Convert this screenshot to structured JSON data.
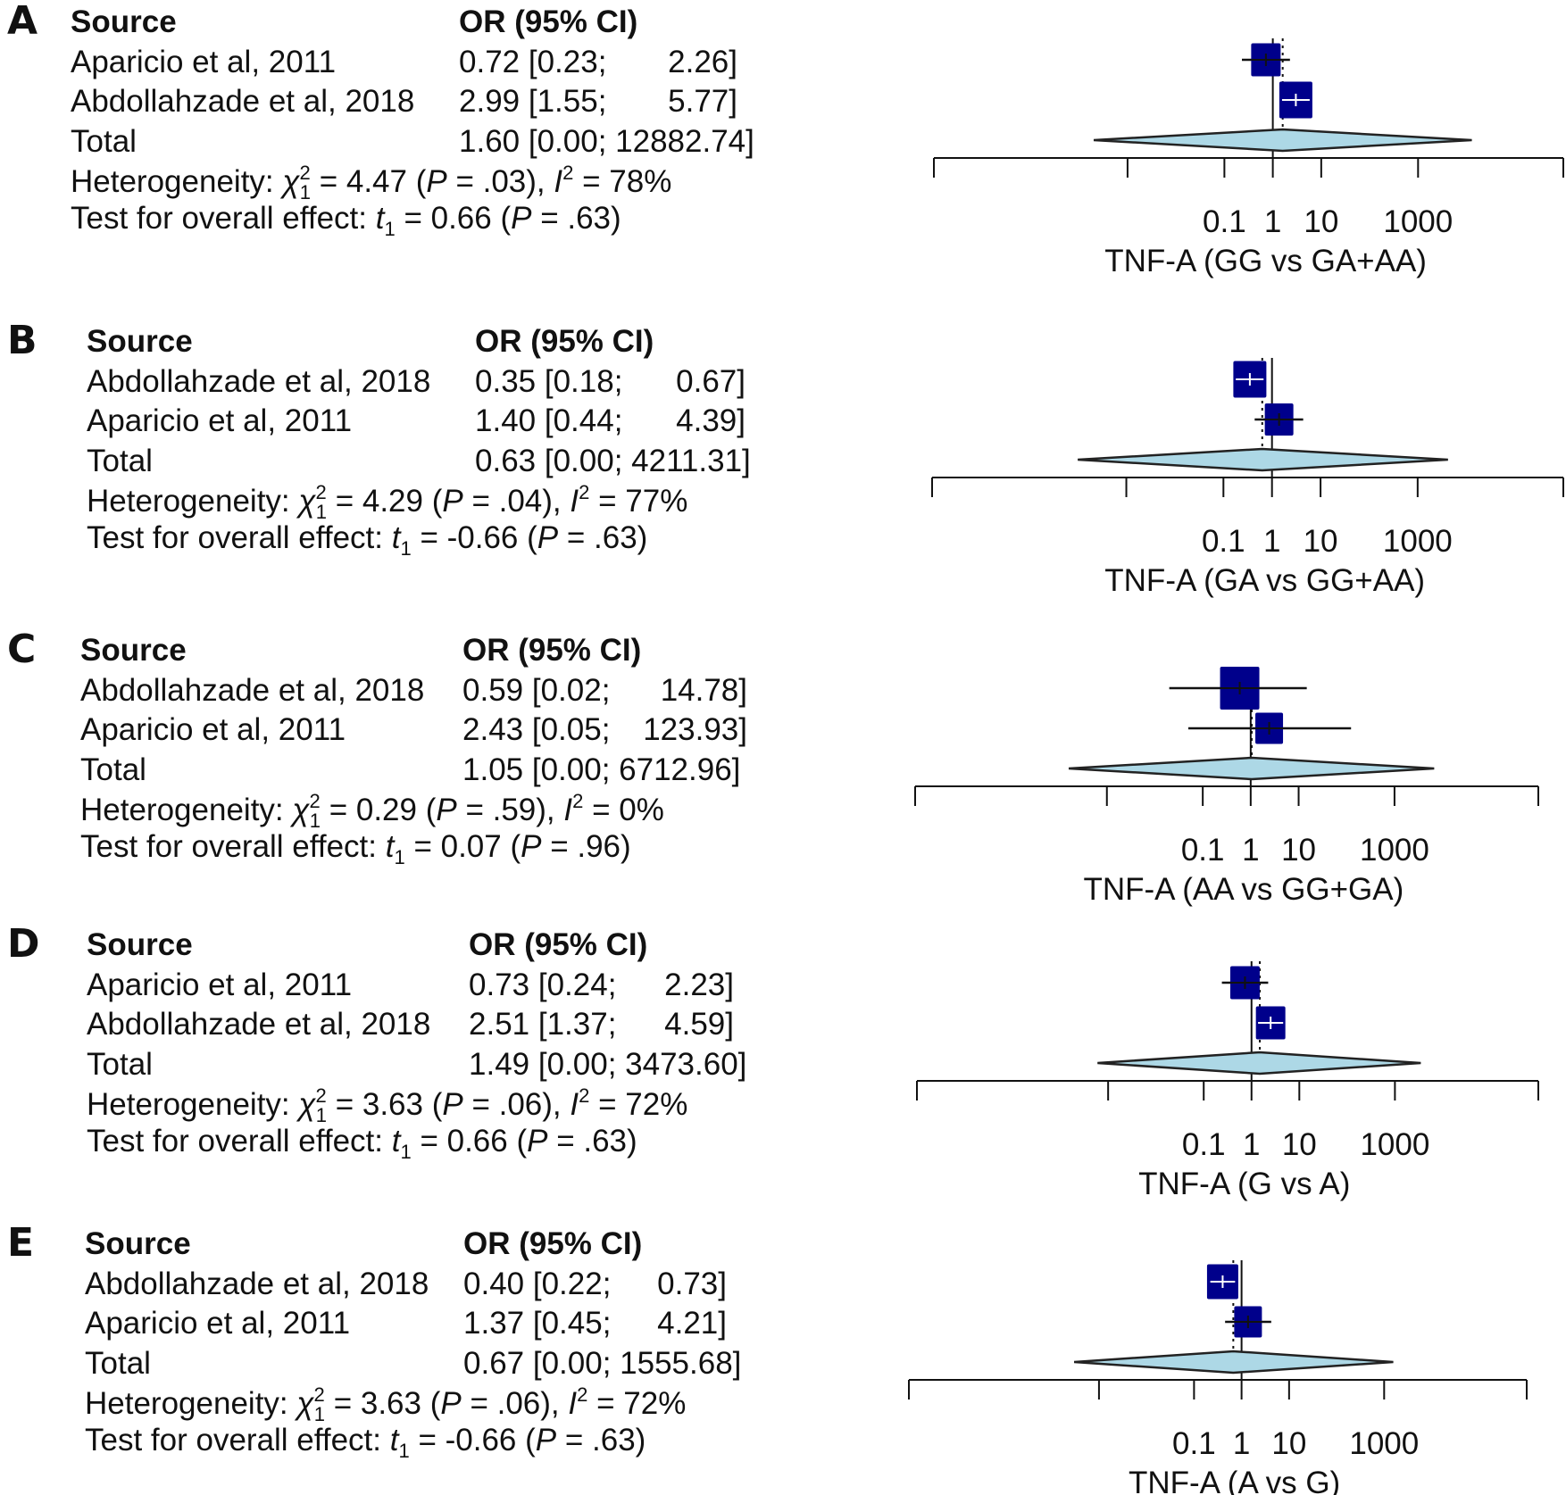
{
  "labels": {
    "source": "Source",
    "or_ci": "OR (95% CI)",
    "total": "Total",
    "heterogeneity": "Heterogeneity:",
    "overall": "Test for overall effect:"
  },
  "colors": {
    "square": "#00008B",
    "diamond_fill": "#ADD8E6",
    "line": "#111111"
  },
  "chart_data": [
    {
      "type": "forest",
      "panel": "A",
      "xlabel": "TNF-A (GG vs GA+AA)",
      "xscale": "log",
      "xticks": [
        1e-07,
        0.001,
        0.1,
        1,
        10,
        1000,
        1000000
      ],
      "xtick_labels": [
        "",
        "",
        "0.1",
        "1",
        "10",
        "1000",
        ""
      ],
      "studies": [
        {
          "name": "Aparicio et al, 2011",
          "or": 0.72,
          "lower": 0.23,
          "upper": 2.26,
          "or_text": "0.72",
          "lower_text": "0.23",
          "upper_text": "2.26"
        },
        {
          "name": "Abdollahzade et al, 2018",
          "or": 2.99,
          "lower": 1.55,
          "upper": 5.77,
          "or_text": "2.99",
          "lower_text": "1.55",
          "upper_text": "5.77"
        }
      ],
      "total": {
        "or": 1.6,
        "lower": 0.0002,
        "upper": 12882.74,
        "text": "1.60 [0.00; 12882.74]"
      },
      "heterogeneity": {
        "chi2": "4.47",
        "p": ".03",
        "i2": "78%"
      },
      "overall": {
        "t": "0.66",
        "p": ".63"
      }
    },
    {
      "type": "forest",
      "panel": "B",
      "xlabel": "TNF-A (GA vs GG+AA)",
      "xscale": "log",
      "xticks": [
        1e-07,
        0.001,
        0.1,
        1,
        10,
        1000,
        1000000
      ],
      "xtick_labels": [
        "",
        "",
        "0.1",
        "1",
        "10",
        "1000",
        ""
      ],
      "studies": [
        {
          "name": "Abdollahzade et al, 2018",
          "or": 0.35,
          "lower": 0.18,
          "upper": 0.67,
          "or_text": "0.35",
          "lower_text": "0.18",
          "upper_text": "0.67"
        },
        {
          "name": "Aparicio et al, 2011",
          "or": 1.4,
          "lower": 0.44,
          "upper": 4.39,
          "or_text": "1.40",
          "lower_text": "0.44",
          "upper_text": "4.39"
        }
      ],
      "total": {
        "or": 0.63,
        "lower": 0.0001,
        "upper": 4211.31,
        "text": "0.63 [0.00; 4211.31]"
      },
      "heterogeneity": {
        "chi2": "4.29",
        "p": ".04",
        "i2": "77%"
      },
      "overall": {
        "t": "-0.66",
        "p": ".63"
      }
    },
    {
      "type": "forest",
      "panel": "C",
      "xlabel": "TNF-A (AA vs GG+GA)",
      "xscale": "log",
      "xticks": [
        1e-07,
        0.001,
        0.1,
        1,
        10,
        1000,
        1000000
      ],
      "xtick_labels": [
        "",
        "",
        "0.1",
        "1",
        "10",
        "1000",
        ""
      ],
      "studies": [
        {
          "name": "Abdollahzade et al, 2018",
          "or": 0.59,
          "lower": 0.02,
          "upper": 14.78,
          "or_text": "0.59",
          "lower_text": "0.02",
          "upper_text": "14.78"
        },
        {
          "name": "Aparicio et al, 2011",
          "or": 2.43,
          "lower": 0.05,
          "upper": 123.93,
          "or_text": "2.43",
          "lower_text": "0.05",
          "upper_text": "123.93"
        }
      ],
      "total": {
        "or": 1.05,
        "lower": 0.00016,
        "upper": 6712.96,
        "text": "1.05 [0.00; 6712.96]"
      },
      "heterogeneity": {
        "chi2": "0.29",
        "p": ".59",
        "i2": "0%"
      },
      "overall": {
        "t": "0.07",
        "p": ".96"
      }
    },
    {
      "type": "forest",
      "panel": "D",
      "xlabel": "TNF-A (G vs A)",
      "xscale": "log",
      "xticks": [
        1e-07,
        0.001,
        0.1,
        1,
        10,
        1000,
        1000000
      ],
      "xtick_labels": [
        "",
        "",
        "0.1",
        "1",
        "10",
        "1000",
        ""
      ],
      "studies": [
        {
          "name": "Aparicio et al, 2011",
          "or": 0.73,
          "lower": 0.24,
          "upper": 2.23,
          "or_text": "0.73",
          "lower_text": "0.24",
          "upper_text": "2.23"
        },
        {
          "name": "Abdollahzade et al, 2018",
          "or": 2.51,
          "lower": 1.37,
          "upper": 4.59,
          "or_text": "2.51",
          "lower_text": "1.37",
          "upper_text": "4.59"
        }
      ],
      "total": {
        "or": 1.49,
        "lower": 0.0006,
        "upper": 3473.6,
        "text": "1.49 [0.00; 3473.60]"
      },
      "heterogeneity": {
        "chi2": "3.63",
        "p": ".06",
        "i2": "72%"
      },
      "overall": {
        "t": "0.66",
        "p": ".63"
      }
    },
    {
      "type": "forest",
      "panel": "E",
      "xlabel": "TNF-A (A vs G)",
      "xscale": "log",
      "xticks": [
        1e-07,
        0.001,
        0.1,
        1,
        10,
        1000,
        1000000
      ],
      "xtick_labels": [
        "",
        "",
        "0.1",
        "1",
        "10",
        "1000",
        ""
      ],
      "studies": [
        {
          "name": "Abdollahzade et al, 2018",
          "or": 0.4,
          "lower": 0.22,
          "upper": 0.73,
          "or_text": "0.40",
          "lower_text": "0.22",
          "upper_text": "0.73"
        },
        {
          "name": "Aparicio et al, 2011",
          "or": 1.37,
          "lower": 0.45,
          "upper": 4.21,
          "or_text": "1.37",
          "lower_text": "0.45",
          "upper_text": "4.21"
        }
      ],
      "total": {
        "or": 0.67,
        "lower": 0.0003,
        "upper": 1555.68,
        "text": "0.67 [0.00; 1555.68]"
      },
      "heterogeneity": {
        "chi2": "3.63",
        "p": ".06",
        "i2": "72%"
      },
      "overall": {
        "t": "-0.66",
        "p": ".63"
      }
    }
  ]
}
